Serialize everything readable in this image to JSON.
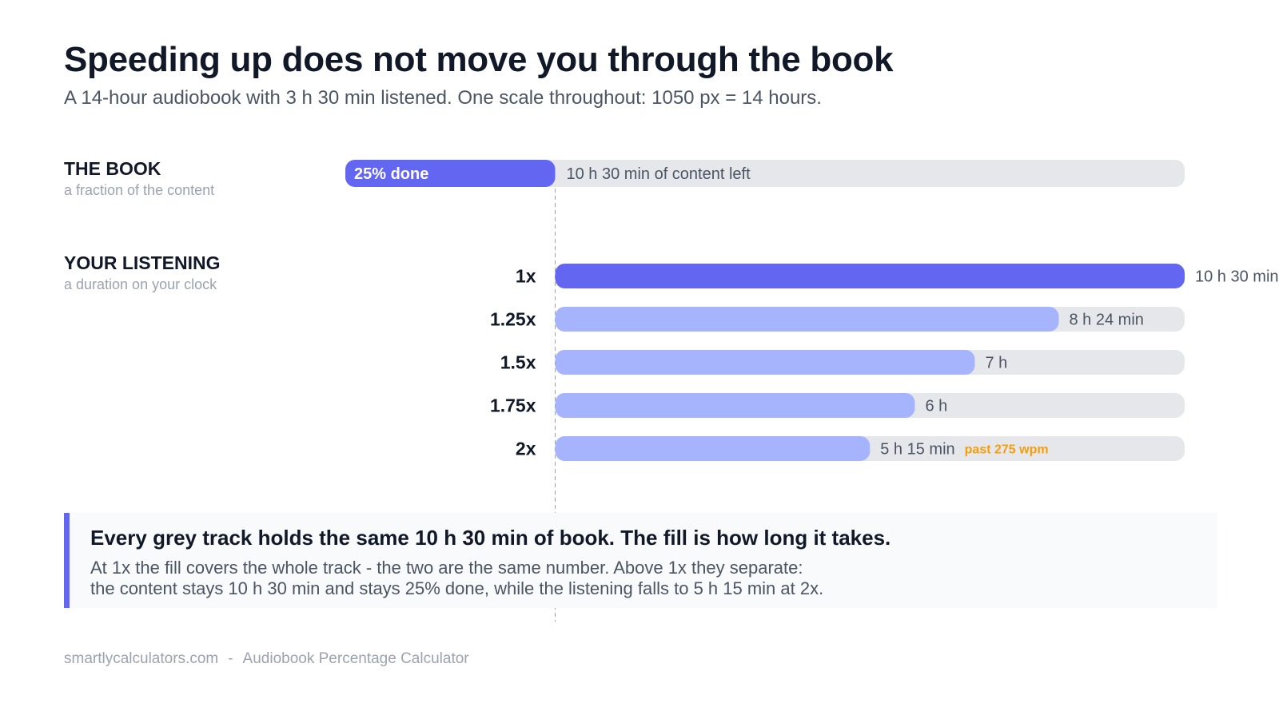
{
  "header": {
    "title": "Speeding up does not move you through the book",
    "subtitle": "A 14-hour audiobook with 3 h 30 min listened. One scale throughout: 1050 px = 14 hours."
  },
  "sections": {
    "book": {
      "title": "THE BOOK",
      "subtitle": "a fraction of the content"
    },
    "listening": {
      "title": "YOUR LISTENING",
      "subtitle": "a duration on your clock"
    }
  },
  "chart_data": {
    "type": "bar",
    "scale_total_hours": 14,
    "book": {
      "total_hours": 14,
      "listened_hours": 3.5,
      "done_label": "25% done",
      "remaining_label": "10 h 30 min of content left"
    },
    "listening": {
      "categories": [
        "1x",
        "1.25x",
        "1.5x",
        "1.75x",
        "2x"
      ],
      "speeds": [
        1,
        1.25,
        1.5,
        1.75,
        2
      ],
      "track_hours": 10.5,
      "values_hours": [
        10.5,
        8.4,
        7,
        6,
        5.25
      ],
      "value_labels": [
        "10 h 30 min",
        "8 h 24 min",
        "7 h",
        "6 h",
        "5 h 15 min"
      ],
      "notes": [
        "",
        "",
        "",
        "",
        "past 275 wpm"
      ]
    },
    "colors": {
      "primary": "#6366f1",
      "light_fill": "#a5b4fc",
      "track": "#e5e7eb",
      "warning": "#f59e0b",
      "divider": "#9ca3af"
    }
  },
  "callout": {
    "headline": "Every grey track holds the same 10 h 30 min of book. The fill is how long it takes.",
    "line1": "At 1x the fill covers the whole track - the two are the same number. Above 1x they separate:",
    "line2": "the content stays 10 h 30 min and stays 25% done, while the listening falls to 5 h 15 min at 2x."
  },
  "footer": {
    "site": "smartlycalculators.com",
    "separator": "-",
    "tool": "Audiobook Percentage Calculator"
  }
}
